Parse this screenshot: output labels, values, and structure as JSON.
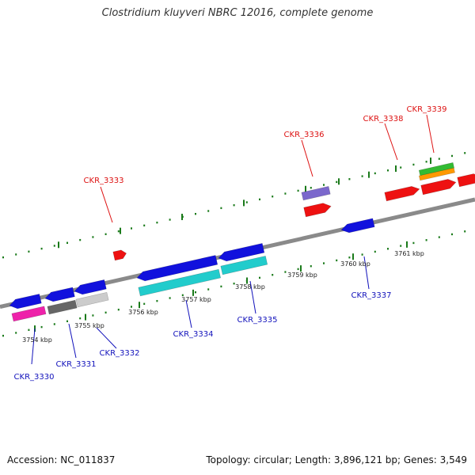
{
  "title": "Clostridium kluyveri NBRC 12016, complete genome",
  "footer": {
    "accession": "Accession: NC_011837",
    "stats": "Topology: circular; Length: 3,896,121 bp; Genes: 3,549"
  },
  "colors": {
    "backbone": "#8a8a8a",
    "tick": "#1a7a1a",
    "forward_label": "#dd1111",
    "reverse_label": "#1111bb"
  },
  "scale_labels": [
    "3754 kbp",
    "3755 kbp",
    "3756 kbp",
    "3757 kbp",
    "3758 kbp",
    "3759 kbp",
    "3760 kbp",
    "3761 kbp"
  ],
  "forward_genes": [
    {
      "label": "CKR_3333",
      "color": "#ee1111"
    },
    {
      "label": "CKR_3336",
      "color": "#ee1111"
    },
    {
      "label": "CKR_3338",
      "color": "#ee1111"
    },
    {
      "label": "CKR_3339",
      "color": "#ee1111"
    }
  ],
  "forward_features": [
    {
      "name": "purple-feature",
      "color": "#7b68cc"
    },
    {
      "name": "green-feature",
      "color": "#33bb33"
    },
    {
      "name": "orange-feature",
      "color": "#ff9900"
    },
    {
      "name": "right-edge-gene",
      "color": "#ee1111"
    }
  ],
  "reverse_genes": [
    {
      "label": "CKR_3330",
      "color": "#1111dd"
    },
    {
      "label": "CKR_3331",
      "color": "#1111dd"
    },
    {
      "label": "CKR_3332",
      "color": "#1111dd"
    },
    {
      "label": "CKR_3334",
      "color": "#1111dd"
    },
    {
      "label": "CKR_3335",
      "color": "#1111dd"
    },
    {
      "label": "CKR_3337",
      "color": "#1111dd"
    }
  ],
  "reverse_features": [
    {
      "name": "magenta-feature",
      "color": "#ee22aa"
    },
    {
      "name": "dark-gray-feature",
      "color": "#666666"
    },
    {
      "name": "light-gray-feature",
      "color": "#cccccc"
    },
    {
      "name": "cyan-feature-left",
      "color": "#22cccc"
    },
    {
      "name": "cyan-feature-right",
      "color": "#22cccc"
    }
  ]
}
